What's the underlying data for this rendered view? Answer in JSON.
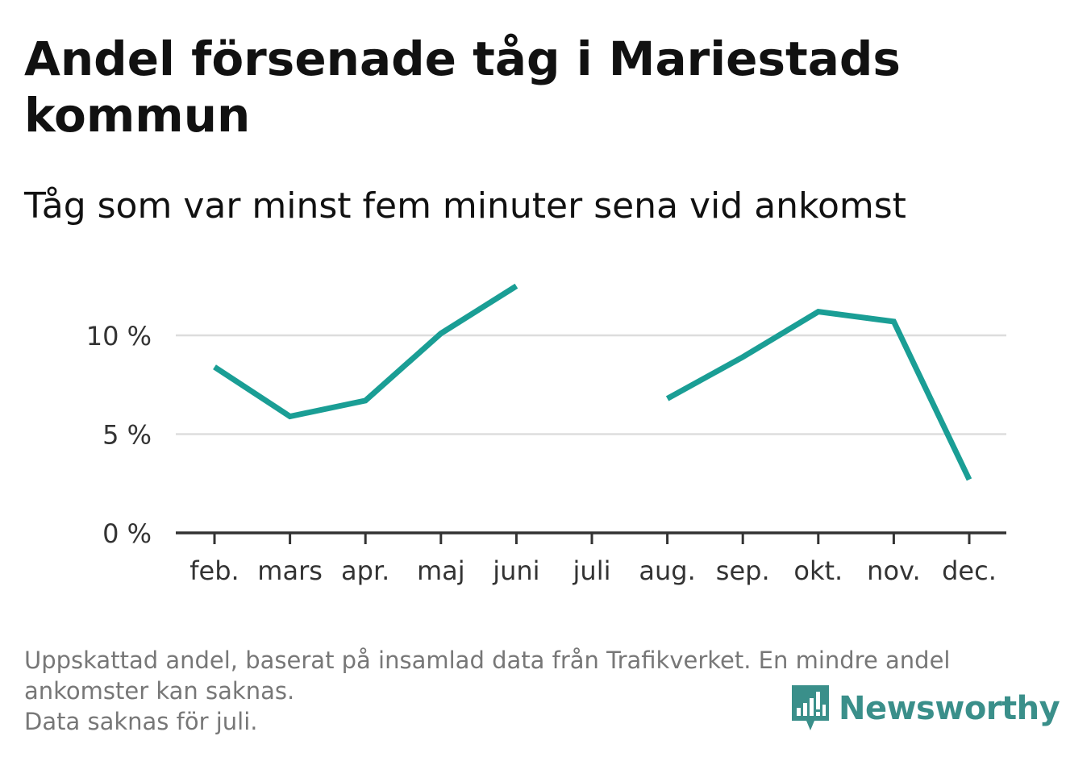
{
  "header": {
    "title": "Andel försenade tåg i Mariestads kommun",
    "subtitle": "Tåg som var minst fem minuter sena vid ankomst"
  },
  "footer": {
    "note_line1": "Uppskattad andel, baserat på insamlad data från Trafikverket. En mindre andel",
    "note_line2": "ankomster kan saknas.",
    "note_line3": "Data saknas för juli.",
    "brand": "Newsworthy",
    "brand_icon": "newsworthy-logo-icon"
  },
  "colors": {
    "line": "#1a9e95",
    "grid": "#dddddd",
    "axis": "#333333",
    "brand": "#3a8f8a",
    "note": "#777777"
  },
  "chart_data": {
    "type": "line",
    "title": "Andel försenade tåg i Mariestads kommun",
    "subtitle": "Tåg som var minst fem minuter sena vid ankomst",
    "categories": [
      "feb.",
      "mars",
      "apr.",
      "maj",
      "juni",
      "juli",
      "aug.",
      "sep.",
      "okt.",
      "nov.",
      "dec."
    ],
    "series": [
      {
        "values": [
          8.4,
          5.9,
          6.7,
          10.1,
          12.5,
          null,
          6.8,
          8.9,
          11.2,
          10.7,
          2.7
        ]
      }
    ],
    "ylim": [
      0,
      13
    ],
    "yticks": [
      0,
      5,
      10
    ],
    "ytick_labels": [
      "0 %",
      "5 %",
      "10 %"
    ],
    "xlabel": "",
    "ylabel": "",
    "grid": true,
    "legend": "none"
  }
}
